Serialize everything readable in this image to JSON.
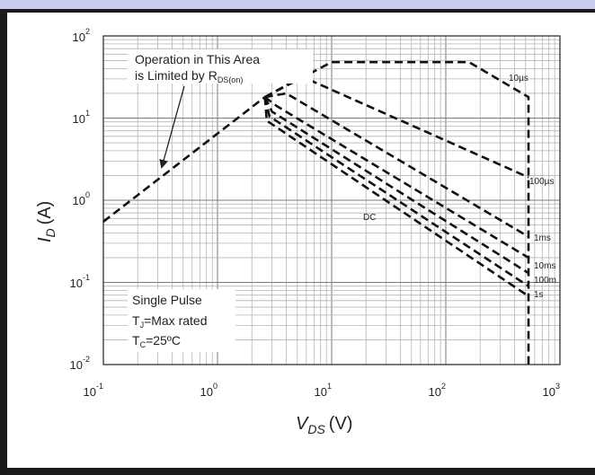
{
  "chart_data": {
    "type": "line",
    "title": "",
    "xlabel": {
      "symbol": "V",
      "subscript": "DS",
      "unit": "(V)"
    },
    "ylabel": {
      "symbol": "I",
      "subscript": "D",
      "unit": "(A)"
    },
    "xscale": "log",
    "yscale": "log",
    "xlim": [
      0.1,
      1000
    ],
    "ylim": [
      0.01,
      100
    ],
    "grid": true,
    "x_ticks": [
      {
        "base": "10",
        "exp": "-1",
        "value": 0.1
      },
      {
        "base": "10",
        "exp": "0",
        "value": 1
      },
      {
        "base": "10",
        "exp": "1",
        "value": 10
      },
      {
        "base": "10",
        "exp": "2",
        "value": 100
      },
      {
        "base": "10",
        "exp": "3",
        "value": 1000
      }
    ],
    "y_ticks": [
      {
        "base": "10",
        "exp": "-2",
        "value": 0.01
      },
      {
        "base": "10",
        "exp": "-1",
        "value": 0.1
      },
      {
        "base": "10",
        "exp": "0",
        "value": 1
      },
      {
        "base": "10",
        "exp": "1",
        "value": 10
      },
      {
        "base": "10",
        "exp": "2",
        "value": 100
      }
    ],
    "rds_limit": {
      "x": [
        0.1,
        2.6
      ],
      "y": [
        0.55,
        18
      ]
    },
    "series": [
      {
        "name": "10µs",
        "x": [
          2.6,
          10,
          17,
          160,
          530,
          530
        ],
        "y": [
          18,
          48,
          48,
          48,
          18,
          0.01
        ]
      },
      {
        "name": "100µs",
        "x": [
          2.6,
          5.5,
          530
        ],
        "y": [
          18,
          32,
          1.9
        ]
      },
      {
        "name": "1ms",
        "x": [
          2.6,
          4.0,
          530
        ],
        "y": [
          18,
          20,
          0.36
        ]
      },
      {
        "name": "10ms",
        "x": [
          2.6,
          3.3,
          530
        ],
        "y": [
          18,
          14,
          0.2
        ]
      },
      {
        "name": "100m",
        "x": [
          2.6,
          3.0,
          530
        ],
        "y": [
          18,
          12,
          0.13
        ]
      },
      {
        "name": "1s",
        "x": [
          2.6,
          2.85,
          530
        ],
        "y": [
          18,
          10.5,
          0.09
        ]
      },
      {
        "name": "DC",
        "x": [
          2.6,
          2.7,
          530
        ],
        "y": [
          18,
          9.3,
          0.068
        ]
      }
    ],
    "annotation_rds": {
      "line1": "Operation in This Area",
      "line2_main": "is Limited by R",
      "line2_sub": "DS(on)"
    },
    "annotation_conditions": {
      "line1": "Single Pulse",
      "line2_main": "T",
      "line2_sub": "J",
      "line2_rest": "=Max rated",
      "line3_main": "T",
      "line3_sub": "C",
      "line3_rest": "=25ºC"
    }
  }
}
